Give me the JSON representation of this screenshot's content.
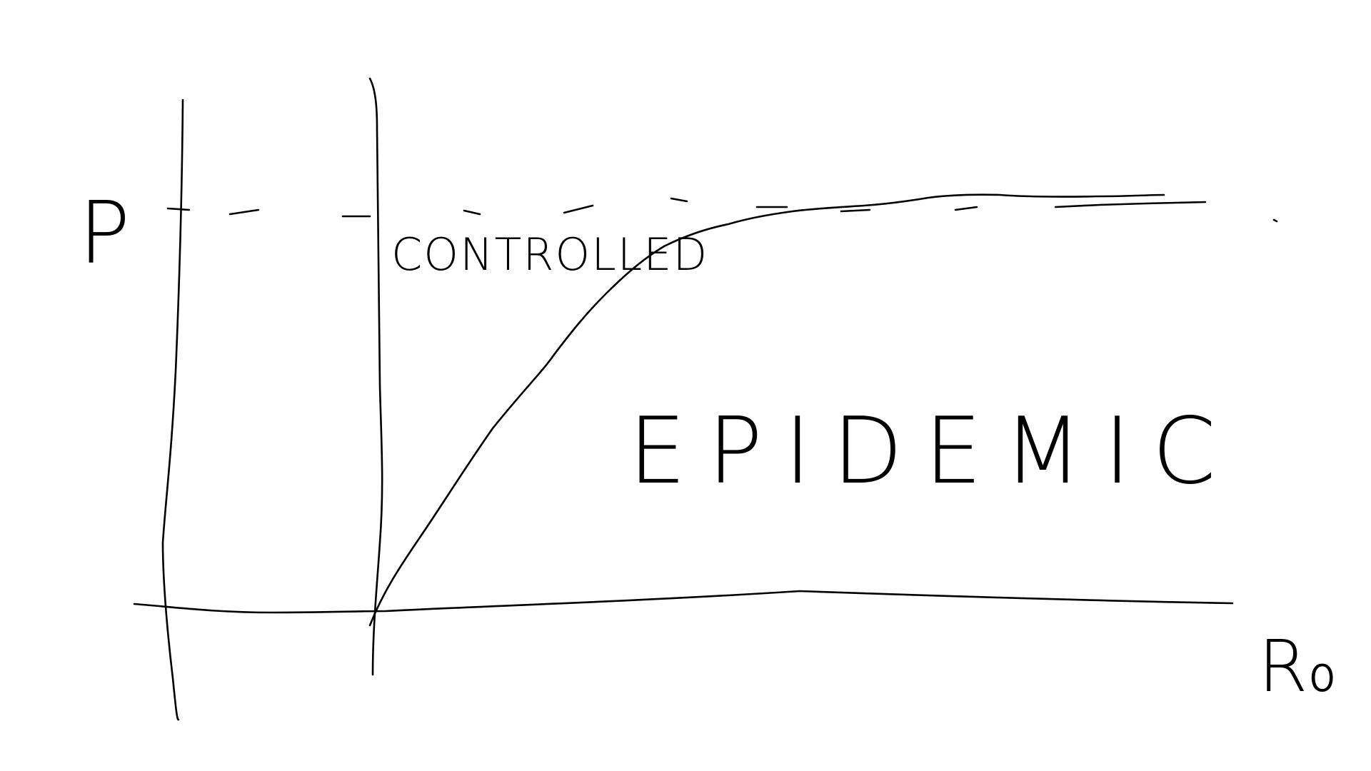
{
  "diagram": {
    "y_axis_label": "P",
    "x_axis_label": "R₀",
    "regions": {
      "upper_left": "CONTROLLED",
      "lower_right": "EPIDEMIC"
    },
    "colors": {
      "background": "#ffffff",
      "ink": "#000000"
    }
  }
}
